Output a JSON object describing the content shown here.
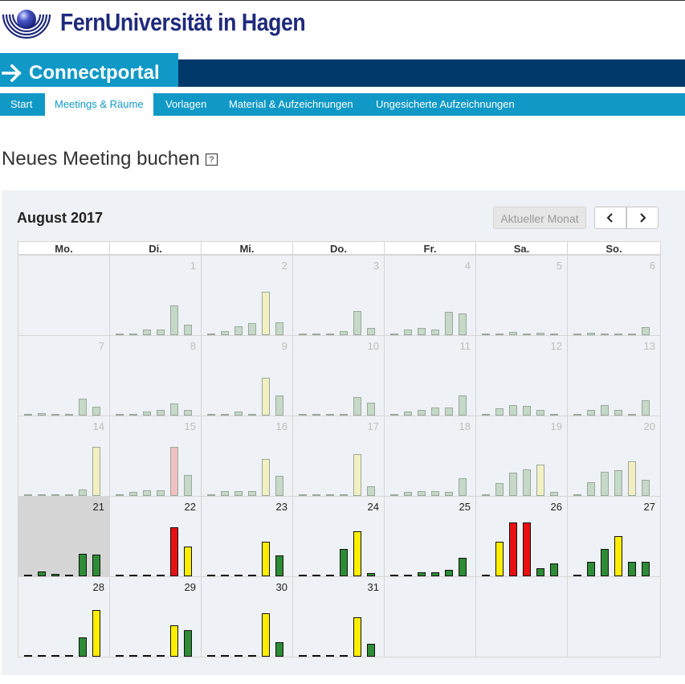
{
  "header": {
    "university": "FernUniversität in Hagen",
    "portal_title": "Connectportal"
  },
  "nav": [
    {
      "label": "Start",
      "active": false
    },
    {
      "label": "Meetings & Räume",
      "active": true
    },
    {
      "label": "Vorlagen",
      "active": false
    },
    {
      "label": "Material & Aufzeichnungen",
      "active": false
    },
    {
      "label": "Ungesicherte Aufzeichnungen",
      "active": false
    }
  ],
  "page": {
    "title": "Neues Meeting buchen",
    "help_label": "?"
  },
  "calendar": {
    "month_label": "August 2017",
    "current_month_button": "Aktueller Monat",
    "prev_icon": "chevron-left-icon",
    "next_icon": "chevron-right-icon",
    "weekdays": [
      "Mo.",
      "Di.",
      "Mi.",
      "Do.",
      "Fr.",
      "Sa.",
      "So."
    ],
    "first_weekday_offset": 1,
    "today": 21,
    "colors": {
      "past_green": "#c6d8c8",
      "past_yellow": "#f2f0c2",
      "past_red": "#efc1c1",
      "cur_green": "#2e8b36",
      "cur_yellow": "#ffee00",
      "cur_red": "#e81010",
      "outline": "#111111"
    },
    "days": [
      {
        "day": "1",
        "bars": [
          0.02,
          0.03,
          0.08,
          0.08,
          0.45,
          0.16
        ],
        "levels": [
          "g",
          "g",
          "g",
          "g",
          "g",
          "g"
        ]
      },
      {
        "day": "2",
        "bars": [
          0.02,
          0.06,
          0.14,
          0.18,
          0.66,
          0.19
        ],
        "levels": [
          "g",
          "g",
          "g",
          "g",
          "y",
          "g"
        ]
      },
      {
        "day": "3",
        "bars": [
          0.02,
          0.03,
          0.03,
          0.06,
          0.36,
          0.11
        ],
        "levels": [
          "g",
          "g",
          "g",
          "g",
          "g",
          "g"
        ]
      },
      {
        "day": "4",
        "bars": [
          0.03,
          0.08,
          0.11,
          0.08,
          0.35,
          0.33
        ],
        "levels": [
          "g",
          "g",
          "g",
          "g",
          "g",
          "g"
        ]
      },
      {
        "day": "5",
        "bars": [
          0.02,
          0.03,
          0.05,
          0.03,
          0.04,
          0.03
        ],
        "levels": [
          "g",
          "g",
          "g",
          "g",
          "g",
          "g"
        ]
      },
      {
        "day": "6",
        "bars": [
          0.02,
          0.04,
          0.03,
          0.02,
          0.03,
          0.12
        ],
        "levels": [
          "g",
          "g",
          "g",
          "g",
          "g",
          "g"
        ]
      },
      {
        "day": "7",
        "bars": [
          0.02,
          0.04,
          0.02,
          0.02,
          0.26,
          0.14
        ],
        "levels": [
          "g",
          "g",
          "g",
          "g",
          "g",
          "g"
        ]
      },
      {
        "day": "8",
        "bars": [
          0.02,
          0.03,
          0.06,
          0.08,
          0.18,
          0.08
        ],
        "levels": [
          "g",
          "g",
          "g",
          "g",
          "g",
          "g"
        ]
      },
      {
        "day": "9",
        "bars": [
          0.02,
          0.03,
          0.06,
          0.03,
          0.57,
          0.3
        ],
        "levels": [
          "g",
          "g",
          "g",
          "g",
          "y",
          "g"
        ]
      },
      {
        "day": "10",
        "bars": [
          0.02,
          0.03,
          0.02,
          0.02,
          0.28,
          0.2
        ],
        "levels": [
          "g",
          "g",
          "g",
          "g",
          "g",
          "g"
        ]
      },
      {
        "day": "11",
        "bars": [
          0.02,
          0.06,
          0.08,
          0.12,
          0.12,
          0.3
        ],
        "levels": [
          "g",
          "g",
          "g",
          "g",
          "g",
          "g"
        ]
      },
      {
        "day": "12",
        "bars": [
          0.02,
          0.11,
          0.16,
          0.15,
          0.08,
          0.02
        ],
        "levels": [
          "g",
          "g",
          "g",
          "g",
          "g",
          "g"
        ]
      },
      {
        "day": "13",
        "bars": [
          0.02,
          0.08,
          0.16,
          0.08,
          0.03,
          0.23
        ],
        "levels": [
          "g",
          "g",
          "g",
          "g",
          "g",
          "g"
        ]
      },
      {
        "day": "14",
        "bars": [
          0.02,
          0.02,
          0.02,
          0.03,
          0.1,
          0.74
        ],
        "levels": [
          "g",
          "g",
          "g",
          "g",
          "g",
          "y"
        ]
      },
      {
        "day": "15",
        "bars": [
          0.02,
          0.06,
          0.09,
          0.09,
          0.74,
          0.32
        ],
        "levels": [
          "g",
          "g",
          "g",
          "g",
          "r",
          "g"
        ]
      },
      {
        "day": "16",
        "bars": [
          0.02,
          0.07,
          0.07,
          0.07,
          0.56,
          0.3
        ],
        "levels": [
          "g",
          "g",
          "g",
          "g",
          "y",
          "g"
        ]
      },
      {
        "day": "17",
        "bars": [
          0.02,
          0.03,
          0.03,
          0.03,
          0.64,
          0.15
        ],
        "levels": [
          "g",
          "g",
          "g",
          "g",
          "y",
          "g"
        ]
      },
      {
        "day": "18",
        "bars": [
          0.02,
          0.06,
          0.07,
          0.07,
          0.06,
          0.27
        ],
        "levels": [
          "g",
          "g",
          "g",
          "g",
          "g",
          "g"
        ]
      },
      {
        "day": "19",
        "bars": [
          0.02,
          0.19,
          0.35,
          0.4,
          0.47,
          0.06
        ],
        "levels": [
          "g",
          "g",
          "g",
          "g",
          "y",
          "g"
        ]
      },
      {
        "day": "20",
        "bars": [
          0.02,
          0.21,
          0.36,
          0.39,
          0.53,
          0.24
        ],
        "levels": [
          "g",
          "g",
          "g",
          "g",
          "y",
          "g"
        ]
      },
      {
        "day": "21",
        "bars": [
          0.02,
          0.07,
          0.04,
          0.02,
          0.34,
          0.33
        ],
        "levels": [
          "g",
          "g",
          "g",
          "g",
          "g",
          "g"
        ]
      },
      {
        "day": "22",
        "bars": [
          0.02,
          0.02,
          0.02,
          0.03,
          0.74,
          0.45
        ],
        "levels": [
          "g",
          "g",
          "g",
          "g",
          "r",
          "y"
        ]
      },
      {
        "day": "23",
        "bars": [
          0.02,
          0.03,
          0.02,
          0.02,
          0.53,
          0.32
        ],
        "levels": [
          "g",
          "g",
          "g",
          "g",
          "y",
          "g"
        ]
      },
      {
        "day": "24",
        "bars": [
          0.02,
          0.03,
          0.03,
          0.42,
          0.68,
          0.05
        ],
        "levels": [
          "g",
          "g",
          "g",
          "g",
          "y",
          "g"
        ]
      },
      {
        "day": "25",
        "bars": [
          0.02,
          0.03,
          0.06,
          0.06,
          0.1,
          0.28
        ],
        "levels": [
          "g",
          "g",
          "g",
          "g",
          "g",
          "g"
        ]
      },
      {
        "day": "26",
        "bars": [
          0.02,
          0.53,
          0.82,
          0.82,
          0.12,
          0.19
        ],
        "levels": [
          "g",
          "y",
          "r",
          "r",
          "g",
          "g"
        ]
      },
      {
        "day": "27",
        "bars": [
          0.02,
          0.22,
          0.42,
          0.61,
          0.22,
          0.22
        ],
        "levels": [
          "g",
          "g",
          "g",
          "y",
          "g",
          "g"
        ]
      },
      {
        "day": "28",
        "bars": [
          0.02,
          0.03,
          0.02,
          0.02,
          0.29,
          0.71
        ],
        "levels": [
          "g",
          "g",
          "g",
          "g",
          "g",
          "y"
        ]
      },
      {
        "day": "29",
        "bars": [
          0.02,
          0.02,
          0.02,
          0.03,
          0.47,
          0.4
        ],
        "levels": [
          "g",
          "g",
          "g",
          "g",
          "y",
          "g"
        ]
      },
      {
        "day": "30",
        "bars": [
          0.02,
          0.03,
          0.03,
          0.02,
          0.66,
          0.22
        ],
        "levels": [
          "g",
          "g",
          "g",
          "g",
          "y",
          "g"
        ]
      },
      {
        "day": "31",
        "bars": [
          0.02,
          0.02,
          0.02,
          0.02,
          0.6,
          0.19
        ],
        "levels": [
          "g",
          "g",
          "g",
          "g",
          "y",
          "g"
        ]
      }
    ]
  }
}
